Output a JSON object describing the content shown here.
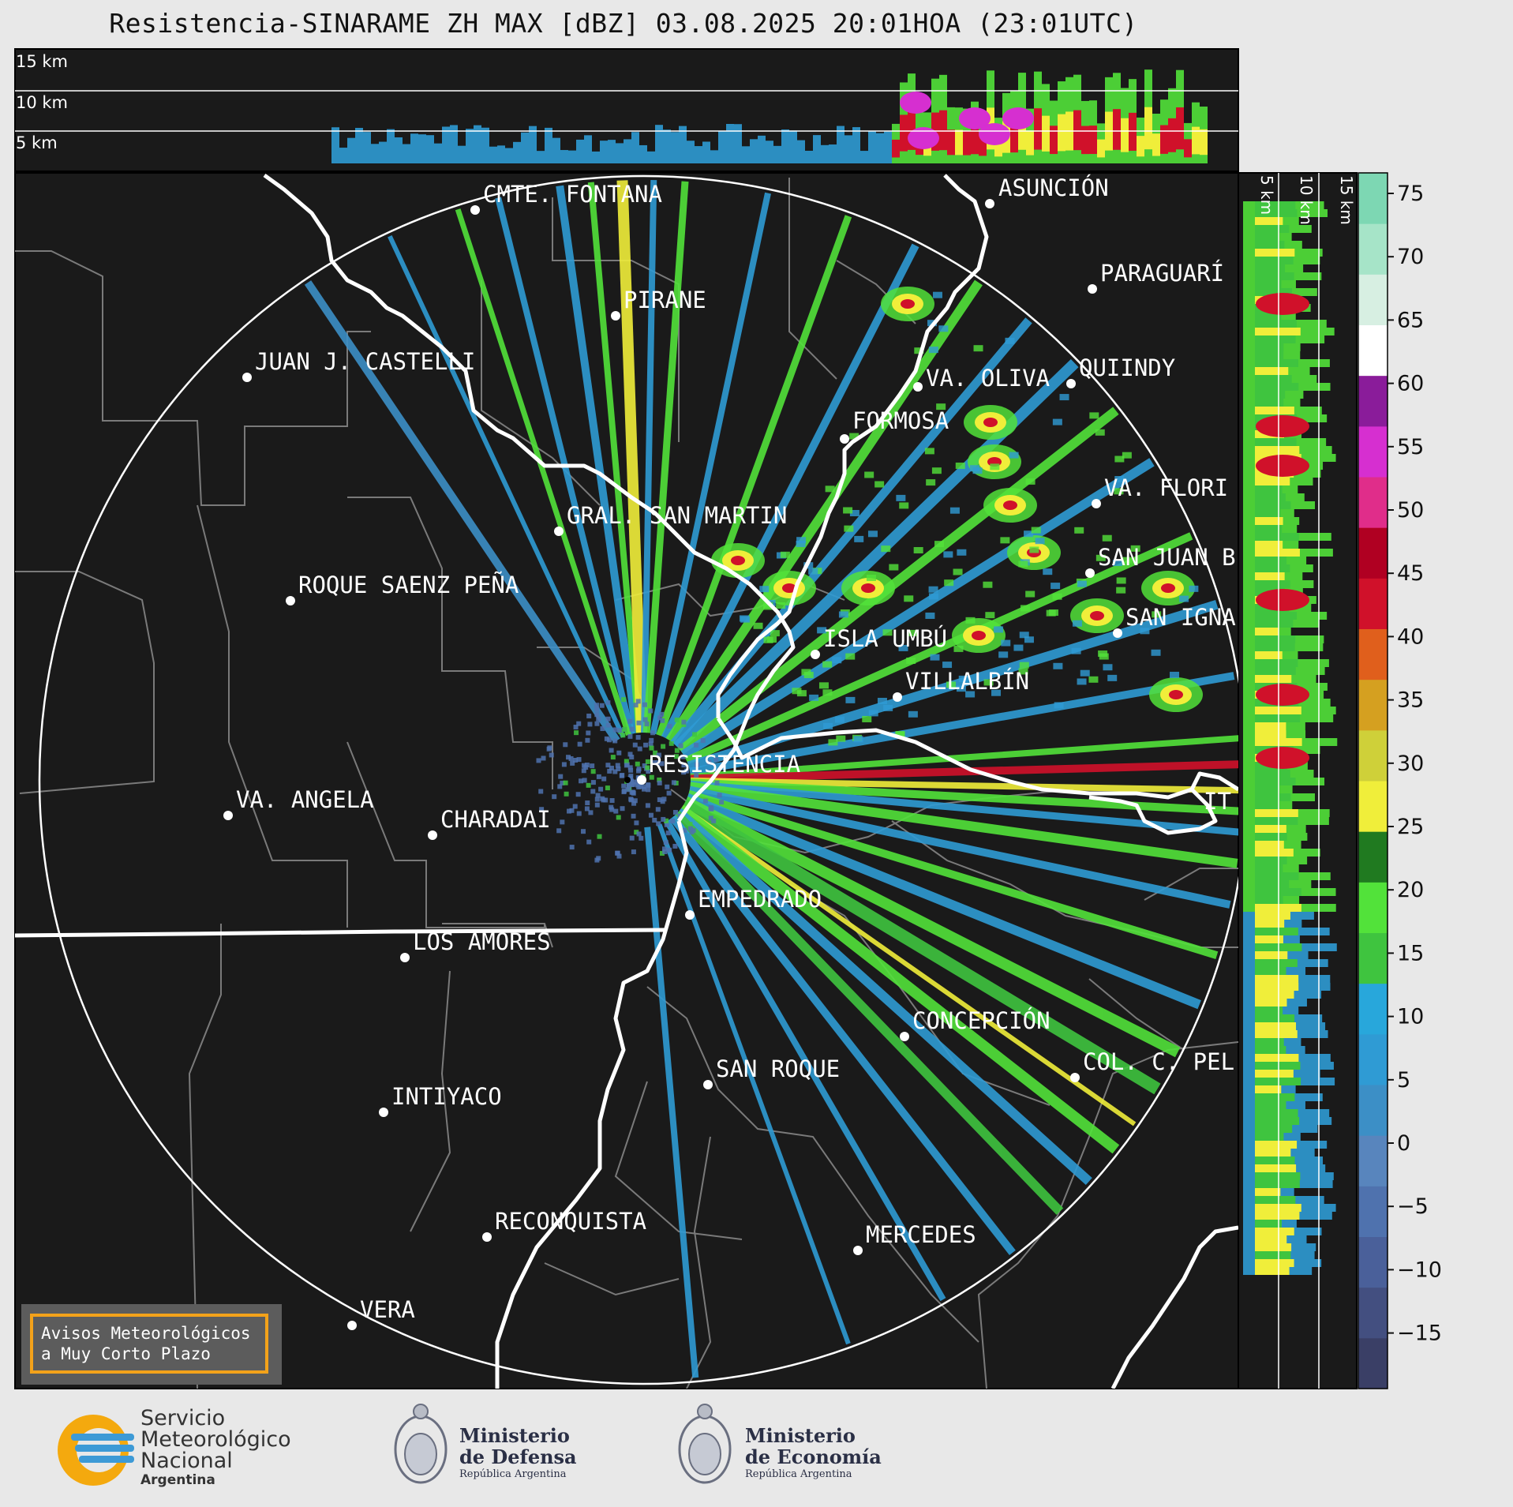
{
  "header": {
    "title": "Resistencia-SINARAME ZH MAX [dBZ] 03.08.2025 20:01HOA (23:01UTC)"
  },
  "top_panel": {
    "height_labels": [
      "15 km",
      "10 km",
      "5 km"
    ]
  },
  "right_panel": {
    "height_labels": [
      "5 km",
      "10 km",
      "15 km"
    ]
  },
  "colorbar": {
    "ticks": [
      "75",
      "70",
      "65",
      "60",
      "55",
      "50",
      "45",
      "40",
      "35",
      "30",
      "25",
      "20",
      "15",
      "10",
      "5",
      "0",
      "−5",
      "−10",
      "−15"
    ],
    "unit": "dBZ"
  },
  "places": [
    "CMTE. FONTANA",
    "ASUNCIÓN",
    "PARAGUARÍ",
    "PIRANE",
    "JUAN J. CASTELLI",
    "VA. OLIVA",
    "QUIINDY",
    "FORMOSA",
    "VA. FLORI",
    "GRAL. SAN MARTIN",
    "SAN JUAN B",
    "ROQUE SAENZ PEÑA",
    "SAN IGNA",
    "ISLA UMBÚ",
    "VILLALBÍN",
    "RESISTENCIA",
    "VA. ANGELA",
    "CHARADAI",
    "IT",
    "EMPEDRADO",
    "LOS AMORES",
    "CONCEPCIÓN",
    "COL. C. PEL",
    "SAN ROQUE",
    "INTIYACO",
    "RECONQUISTA",
    "MERCEDES",
    "VERA"
  ],
  "notice": {
    "line1": "Avisos Meteorológicos",
    "line2": "a Muy Corto Plazo"
  },
  "footer": {
    "smn": {
      "line1": "Servicio",
      "line2": "Meteorológico",
      "line3": "Nacional",
      "line4": "Argentina"
    },
    "defensa": {
      "line1": "Ministerio",
      "line2": "de Defensa",
      "line3": "República Argentina"
    },
    "economia": {
      "line1": "Ministerio",
      "line2": "de Economía",
      "line3": "República Argentina"
    }
  },
  "colors": {
    "map_background": "#1a1a1a",
    "colorbar_scale": [
      "#3a3f66",
      "#434f80",
      "#4a609a",
      "#4f72ae",
      "#5885bd",
      "#3c8fc6",
      "#2f9bd4",
      "#28a7db",
      "#3fc43f",
      "#52e23a",
      "#207a20",
      "#f0ee3a",
      "#cfd039",
      "#d5a020",
      "#e05f1c",
      "#d0112a",
      "#b00022",
      "#e02d8a",
      "#d62fd0",
      "#8a1c9a",
      "#ffffff",
      "#d7efe2",
      "#a6e4c8",
      "#7dd7b3"
    ]
  }
}
